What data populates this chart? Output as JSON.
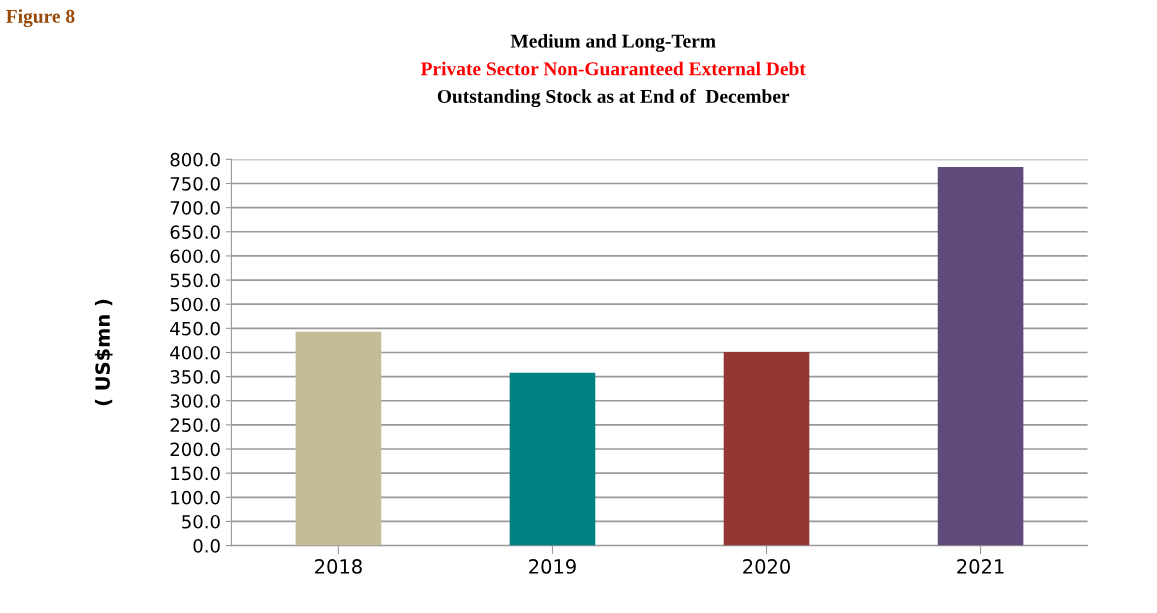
{
  "chart_data": {
    "type": "bar",
    "title": "Medium and Long-Term\nPrivate Sector Non-Guaranteed External Debt\nOutstanding Stock as at End of  December",
    "ylabel": "( US$mn )",
    "annotations": [
      "Figure 8"
    ],
    "categories": [
      "2018",
      "2019",
      "2020",
      "2021"
    ],
    "values": [
      443,
      358,
      401,
      784
    ],
    "colors": [
      "#c3bc96",
      "#008080",
      "#943634",
      "#604a7b"
    ],
    "ylim": [
      0,
      800
    ],
    "yticks": [
      {
        "value": 0,
        "label": "0.0"
      },
      {
        "value": 50,
        "label": "50.0"
      },
      {
        "value": 100,
        "label": "100.0"
      },
      {
        "value": 150,
        "label": "150.0"
      },
      {
        "value": 200,
        "label": "200.0"
      },
      {
        "value": 250,
        "label": "250.0"
      },
      {
        "value": 300,
        "label": "300.0"
      },
      {
        "value": 350,
        "label": "350.0"
      },
      {
        "value": 400,
        "label": "400.0"
      },
      {
        "value": 450,
        "label": "450.0"
      },
      {
        "value": 500,
        "label": "500.0"
      },
      {
        "value": 550,
        "label": "550.0"
      },
      {
        "value": 600,
        "label": "600.0"
      },
      {
        "value": 650,
        "label": "650.0"
      },
      {
        "value": 700,
        "label": "700.0"
      },
      {
        "value": 750,
        "label": "750.0"
      },
      {
        "value": 800,
        "label": "800.0"
      }
    ],
    "grid": "y"
  }
}
